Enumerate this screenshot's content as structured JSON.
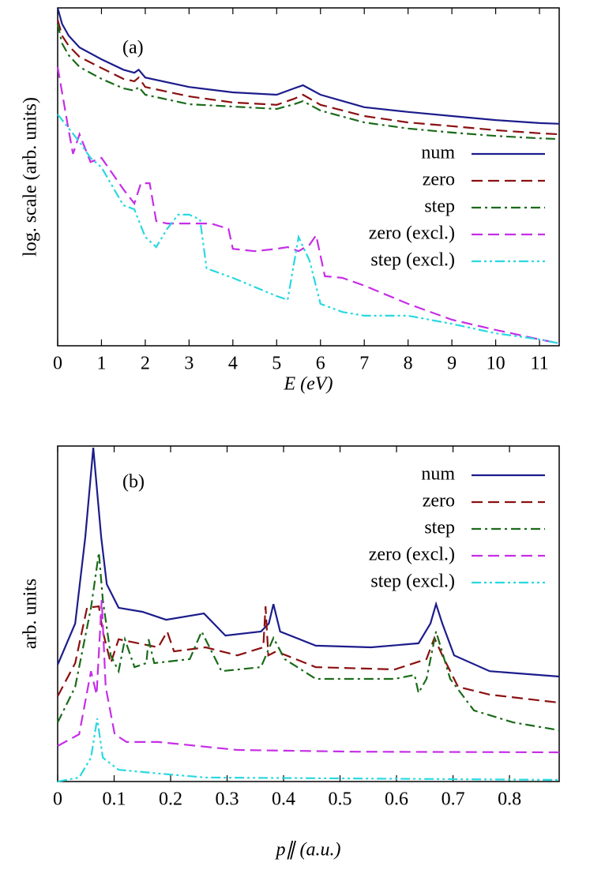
{
  "chart_data": [
    {
      "type": "line",
      "panel_label": "(a)",
      "xlabel": "E (eV)",
      "ylabel": "log. scale (arb. units)",
      "xlim": [
        0,
        11.45
      ],
      "ylim": [
        0,
        100
      ],
      "xticks": [
        0,
        1,
        2,
        3,
        4,
        5,
        6,
        7,
        8,
        9,
        10,
        11
      ],
      "legend": "right",
      "series": [
        {
          "name": "num",
          "color": "#1c1c8c",
          "style": "solid",
          "x": [
            0,
            0.1,
            0.25,
            0.5,
            1,
            1.5,
            1.75,
            1.85,
            2,
            3,
            4,
            5,
            5.4,
            5.6,
            6,
            7,
            8,
            9,
            10,
            11,
            11.45
          ],
          "values": [
            100,
            95.3,
            91.8,
            88.3,
            84.8,
            81.7,
            80.8,
            81.7,
            79.4,
            76.6,
            75,
            74.3,
            76.2,
            77.1,
            74.3,
            70.6,
            69.2,
            68,
            66.8,
            65.9,
            65.7
          ]
        },
        {
          "name": "zero",
          "color": "#8b1010",
          "style": "dashed",
          "x": [
            0,
            0.1,
            0.25,
            0.5,
            1,
            1.5,
            1.75,
            1.85,
            2,
            3,
            4,
            5,
            5.4,
            5.6,
            6,
            7,
            8,
            9,
            10,
            11,
            11.45
          ],
          "values": [
            96.5,
            91.8,
            88.8,
            85.5,
            82.2,
            79,
            78.3,
            79.4,
            76.6,
            73.8,
            72,
            71.3,
            73.1,
            74.3,
            71.3,
            68,
            66.1,
            65,
            63.8,
            62.9,
            62.6
          ]
        },
        {
          "name": "step",
          "color": "#1a6b1a",
          "style": "dashdot",
          "x": [
            0,
            0.1,
            0.25,
            0.5,
            1,
            1.5,
            1.75,
            1.85,
            2,
            3,
            4,
            5,
            5.4,
            5.6,
            6,
            7,
            8,
            9,
            10,
            11,
            11.45
          ],
          "values": [
            95.3,
            89.5,
            86,
            82.5,
            79,
            76.2,
            75.5,
            76.6,
            74.3,
            71.5,
            70.8,
            70.1,
            71.5,
            72.4,
            69.6,
            66.1,
            64.3,
            63.1,
            62.1,
            61.4,
            61.2
          ]
        },
        {
          "name": "zero (excl.)",
          "color": "#c62ee6",
          "style": "dashed",
          "x": [
            0,
            0.25,
            0.35,
            0.5,
            0.75,
            1,
            1.5,
            1.75,
            1.9,
            2.1,
            2.25,
            2.5,
            3,
            3.5,
            3.9,
            4,
            4.5,
            5,
            5.25,
            5.5,
            5.75,
            5.9,
            6.1,
            6.5,
            7,
            8,
            9,
            10,
            11,
            11.45
          ],
          "values": [
            82.5,
            63.8,
            56.8,
            62.6,
            54.4,
            55.6,
            46.3,
            42.1,
            48.1,
            48.1,
            36.9,
            36.2,
            36.2,
            36.2,
            34.6,
            28.7,
            28,
            28.7,
            29.2,
            28,
            29.9,
            32.7,
            20.6,
            20.1,
            17.8,
            12.4,
            7.7,
            4.7,
            1.9,
            0.7
          ]
        },
        {
          "name": "step (excl.)",
          "color": "#2ad8e0",
          "style": "dashdotdot",
          "x": [
            0,
            0.5,
            0.75,
            1,
            1.5,
            1.75,
            2,
            2.25,
            2.5,
            2.75,
            3,
            3.25,
            3.4,
            4,
            5,
            5.25,
            5.5,
            5.75,
            6,
            6.5,
            7,
            8,
            9,
            10,
            11,
            11.45
          ],
          "values": [
            68.5,
            60.3,
            55.6,
            52.8,
            41.6,
            40.4,
            32.2,
            29.2,
            34.6,
            38.8,
            38.8,
            37.4,
            22.9,
            20.1,
            14.7,
            13.6,
            32.2,
            25.2,
            12.4,
            10,
            8.9,
            8.9,
            6.5,
            3.7,
            1.9,
            0.7
          ]
        }
      ]
    },
    {
      "type": "line",
      "panel_label": "(b)",
      "xlabel": "p∥ (a.u.)",
      "ylabel": "arb. units",
      "xlim": [
        0,
        0.888
      ],
      "ylim": [
        0,
        100
      ],
      "xticks": [
        0,
        0.1,
        0.2,
        0.3,
        0.4,
        0.5,
        0.6,
        0.7,
        0.8
      ],
      "legend": "upper right",
      "series": [
        {
          "name": "num",
          "color": "#1c1c8c",
          "style": "solid",
          "x": [
            0,
            0.031,
            0.049,
            0.063,
            0.077,
            0.087,
            0.108,
            0.15,
            0.192,
            0.259,
            0.297,
            0.36,
            0.374,
            0.382,
            0.394,
            0.457,
            0.555,
            0.639,
            0.66,
            0.67,
            0.681,
            0.702,
            0.765,
            0.888
          ],
          "values": [
            34.8,
            47.1,
            72.9,
            99.5,
            72.9,
            58.8,
            51.8,
            50.6,
            48.2,
            50.1,
            43.5,
            44.7,
            47.1,
            52.9,
            44.7,
            40.5,
            40,
            41.2,
            47.1,
            52.9,
            47.1,
            37.6,
            32.9,
            31.3
          ]
        },
        {
          "name": "zero",
          "color": "#8b1010",
          "style": "dashed",
          "x": [
            0,
            0.031,
            0.052,
            0.073,
            0.08,
            0.094,
            0.108,
            0.178,
            0.194,
            0.206,
            0.262,
            0.318,
            0.364,
            0.368,
            0.373,
            0.387,
            0.457,
            0.597,
            0.653,
            0.667,
            0.681,
            0.709,
            0.765,
            0.888
          ],
          "values": [
            25.4,
            35.3,
            51.8,
            52.2,
            44.7,
            35.3,
            42.4,
            40,
            44.7,
            38.8,
            40,
            37.6,
            40,
            52.2,
            37.6,
            38.8,
            34.1,
            33.4,
            36.5,
            42.8,
            37.6,
            28.2,
            25.9,
            23.5
          ]
        },
        {
          "name": "step",
          "color": "#1a6b1a",
          "style": "dashdot",
          "x": [
            0,
            0.031,
            0.059,
            0.073,
            0.08,
            0.094,
            0.108,
            0.119,
            0.136,
            0.157,
            0.161,
            0.171,
            0.234,
            0.255,
            0.29,
            0.36,
            0.382,
            0.402,
            0.457,
            0.597,
            0.632,
            0.639,
            0.653,
            0.67,
            0.695,
            0.737,
            0.807,
            0.888
          ],
          "values": [
            17.6,
            28.2,
            51.8,
            68.2,
            54.1,
            37.6,
            32.9,
            42.4,
            34.1,
            35.3,
            42.4,
            35.3,
            36.5,
            44.7,
            32.9,
            34.1,
            42.8,
            36.5,
            30.6,
            30.6,
            31.8,
            26.4,
            30.6,
            44.7,
            30.6,
            21.2,
            17.6,
            15.3
          ]
        },
        {
          "name": "zero (excl.)",
          "color": "#c62ee6",
          "style": "dashed",
          "x": [
            0,
            0.038,
            0.059,
            0.069,
            0.078,
            0.085,
            0.101,
            0.122,
            0.178,
            0.318,
            0.527,
            0.888
          ],
          "values": [
            10.6,
            14.1,
            32.9,
            25.9,
            54.1,
            28.2,
            14.1,
            11.8,
            11.8,
            9.4,
            8.9,
            8.7
          ]
        },
        {
          "name": "step (excl.)",
          "color": "#2ad8e0",
          "style": "dashdotdot",
          "x": [
            0,
            0.038,
            0.059,
            0.07,
            0.08,
            0.108,
            0.178,
            0.262,
            0.888
          ],
          "values": [
            0,
            1.2,
            7.1,
            18.8,
            7.1,
            3.5,
            2.4,
            1.2,
            0.5
          ]
        }
      ]
    }
  ]
}
